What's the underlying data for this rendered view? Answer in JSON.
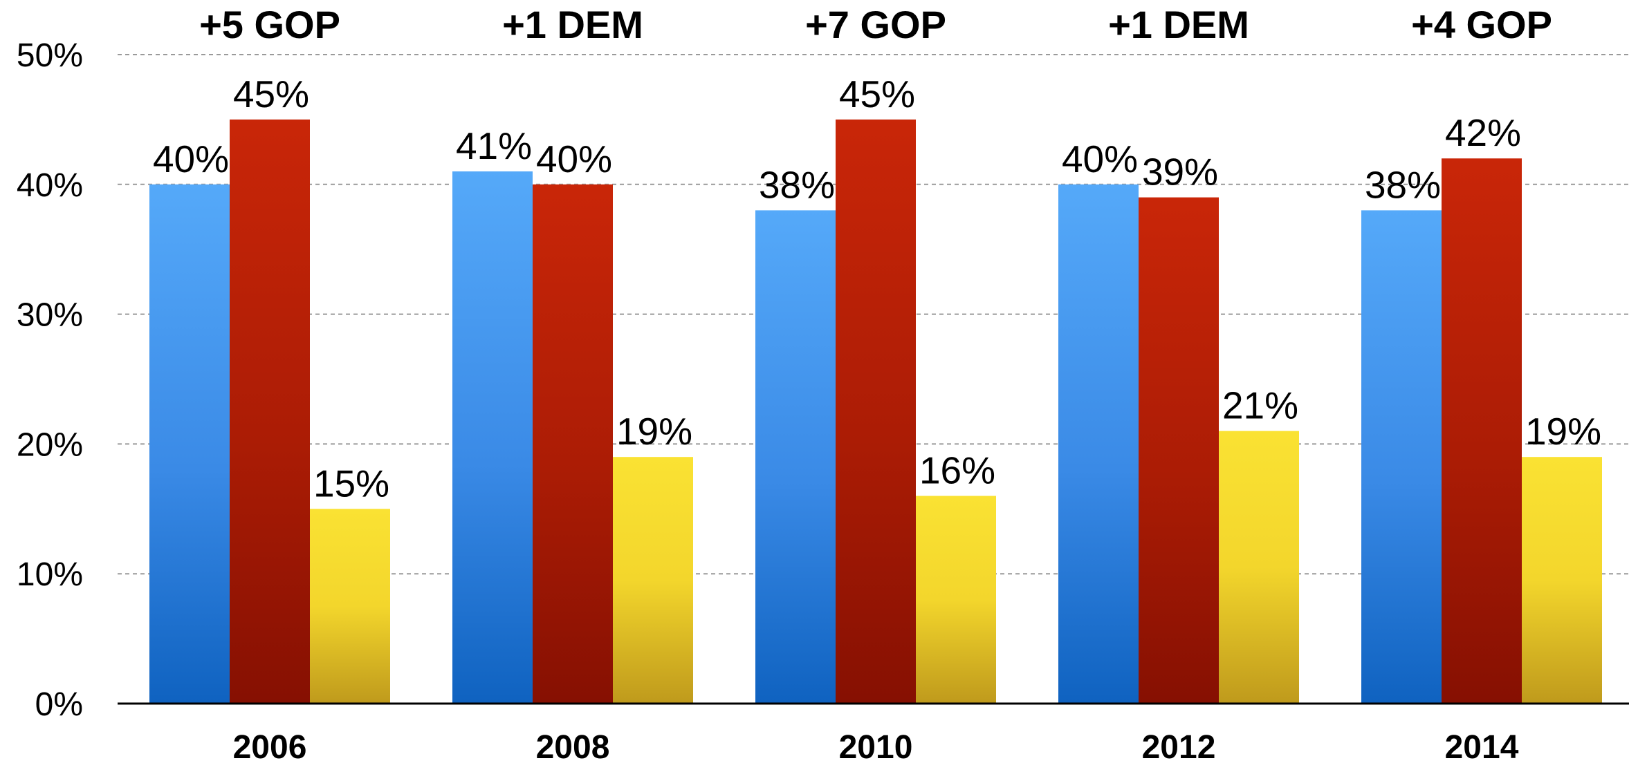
{
  "chart_data": {
    "type": "bar",
    "categories": [
      "2006",
      "2008",
      "2010",
      "2012",
      "2014"
    ],
    "series": [
      {
        "color": "#3a8fe6",
        "values": [
          40,
          41,
          38,
          40,
          38
        ]
      },
      {
        "color": "#b81e05",
        "values": [
          45,
          40,
          45,
          39,
          42
        ]
      },
      {
        "color": "#f2d62a",
        "values": [
          15,
          19,
          16,
          21,
          19
        ]
      }
    ],
    "margin_labels": [
      "+5 GOP",
      "+1 DEM",
      "+7 GOP",
      "+1 DEM",
      "+4 GOP"
    ],
    "ylim": [
      0,
      50
    ],
    "yticks": [
      0,
      10,
      20,
      30,
      40,
      50
    ],
    "value_suffix": "%",
    "grid": true,
    "legend": "none",
    "title": "",
    "xlabel": "",
    "ylabel": ""
  }
}
